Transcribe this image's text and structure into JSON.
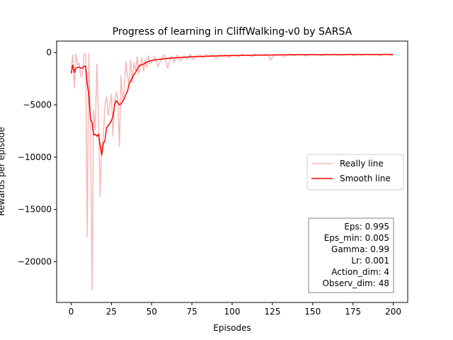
{
  "chart_data": {
    "type": "line",
    "title": "Progress of learning in CliffWalking-v0 by SARSA",
    "xlabel": "Episodes",
    "ylabel": "Rewards per episode",
    "xlim": [
      -9,
      209
    ],
    "ylim": [
      -23900,
      1100
    ],
    "xticks": [
      0,
      25,
      50,
      75,
      100,
      125,
      150,
      175,
      200
    ],
    "yticks": [
      0,
      -5000,
      -10000,
      -15000,
      -20000
    ],
    "ytick_labels": [
      "0",
      "−5000",
      "−10000",
      "−15000",
      "−20000"
    ],
    "grid": false,
    "legend_position": "center-right",
    "series": [
      {
        "name": "Really line",
        "color": "#f7b8b8",
        "x": [
          0,
          1,
          2,
          3,
          4,
          5,
          6,
          7,
          8,
          9,
          10,
          11,
          12,
          13,
          14,
          15,
          16,
          17,
          18,
          19,
          20,
          21,
          22,
          23,
          24,
          25,
          26,
          27,
          28,
          29,
          30,
          31,
          32,
          33,
          34,
          35,
          36,
          37,
          38,
          39,
          40,
          41,
          42,
          43,
          44,
          45,
          46,
          47,
          48,
          49,
          50,
          52,
          54,
          56,
          58,
          60,
          62,
          64,
          66,
          68,
          70,
          72,
          74,
          76,
          78,
          80,
          82,
          84,
          86,
          88,
          90,
          92,
          94,
          96,
          98,
          100,
          102,
          104,
          106,
          108,
          110,
          112,
          114,
          116,
          118,
          120,
          122,
          124,
          126,
          128,
          130,
          132,
          134,
          136,
          138,
          140,
          142,
          144,
          146,
          148,
          150,
          152,
          154,
          156,
          158,
          160,
          162,
          164,
          166,
          168,
          170,
          172,
          174,
          176,
          178,
          180,
          182,
          184,
          186,
          188,
          190,
          192,
          194,
          196,
          198,
          200
        ],
        "values": [
          -1500,
          -200,
          -3400,
          -100,
          -1200,
          -1000,
          -2300,
          -2200,
          -100,
          -200,
          -17600,
          -100,
          -7000,
          -22700,
          -5500,
          -7400,
          -1100,
          -6400,
          -13800,
          -9000,
          -8000,
          -5000,
          -4200,
          -6000,
          -5000,
          -4000,
          -8000,
          -4600,
          -3800,
          -4500,
          -9000,
          -2200,
          -4500,
          -3600,
          -900,
          -2200,
          -3100,
          -700,
          -2900,
          -1000,
          -1800,
          -400,
          -2000,
          -1200,
          -500,
          -1800,
          -700,
          -1400,
          -300,
          -1100,
          -900,
          -400,
          -1300,
          -600,
          -200,
          -1500,
          -300,
          -900,
          -200,
          -800,
          -300,
          -600,
          -150,
          -700,
          -300,
          -200,
          -500,
          -150,
          -400,
          -200,
          -600,
          -200,
          -300,
          -150,
          -500,
          -200,
          -300,
          -400,
          -150,
          -300,
          -200,
          -400,
          -150,
          -250,
          -200,
          -300,
          -150,
          -700,
          -200,
          -250,
          -150,
          -400,
          -200,
          -150,
          -300,
          -200,
          -250,
          -150,
          -350,
          -200,
          -150,
          -250,
          -200,
          -300,
          -150,
          -200,
          -250,
          -150,
          -300,
          -200,
          -250,
          -150,
          -200,
          -300,
          -150,
          -250,
          -200,
          -150,
          -250,
          -200,
          -150,
          -300,
          -200,
          -150,
          -250,
          -200
        ]
      },
      {
        "name": "Smooth line",
        "color": "#ff0000",
        "x": [
          0,
          1,
          2,
          3,
          4,
          5,
          6,
          7,
          8,
          9,
          10,
          11,
          12,
          13,
          14,
          15,
          16,
          17,
          18,
          19,
          20,
          21,
          22,
          23,
          24,
          25,
          26,
          27,
          28,
          29,
          30,
          31,
          32,
          33,
          34,
          35,
          36,
          37,
          38,
          39,
          40,
          41,
          42,
          43,
          44,
          45,
          46,
          47,
          48,
          49,
          50,
          55,
          60,
          65,
          70,
          75,
          80,
          85,
          90,
          95,
          100,
          105,
          110,
          115,
          120,
          125,
          130,
          135,
          140,
          145,
          150,
          155,
          160,
          165,
          170,
          175,
          180,
          185,
          190,
          195,
          200
        ],
        "values": [
          -2000,
          -1200,
          -1900,
          -1500,
          -1400,
          -1400,
          -1500,
          -1500,
          -1300,
          -1300,
          -3000,
          -4000,
          -6300,
          -6700,
          -7900,
          -7800,
          -8000,
          -7800,
          -8800,
          -9800,
          -8700,
          -8400,
          -7200,
          -7000,
          -6800,
          -6500,
          -6100,
          -5000,
          -4600,
          -4800,
          -5000,
          -4900,
          -4700,
          -4400,
          -4000,
          -3700,
          -3000,
          -2700,
          -2400,
          -2100,
          -1900,
          -1600,
          -1300,
          -1200,
          -1150,
          -1100,
          -1000,
          -900,
          -850,
          -800,
          -750,
          -650,
          -550,
          -500,
          -450,
          -400,
          -380,
          -350,
          -320,
          -300,
          -280,
          -270,
          -260,
          -250,
          -240,
          -230,
          -220,
          -215,
          -210,
          -205,
          -200,
          -200,
          -200,
          -195,
          -195,
          -190,
          -190,
          -185,
          -185,
          -180,
          -180
        ]
      }
    ],
    "info_box": [
      "Eps: 0.995",
      "Eps_min: 0.005",
      "Gamma: 0.99",
      "Lr: 0.001",
      "Action_dim: 4",
      "Observ_dim: 48"
    ]
  }
}
